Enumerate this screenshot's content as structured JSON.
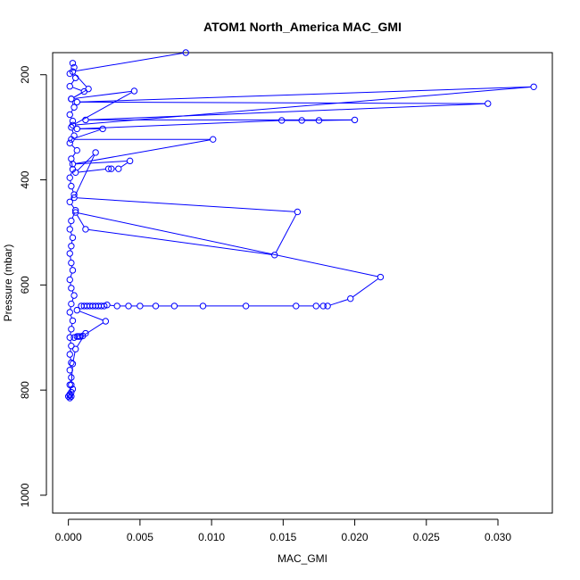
{
  "chart_data": {
    "type": "line",
    "title": "ATOM1 North_America MAC_GMI",
    "xlabel": "MAC_GMI",
    "ylabel": "Pressure (mbar)",
    "xlim": [
      -0.0011,
      0.0338
    ],
    "ylim": [
      1034,
      158
    ],
    "y_reversed": true,
    "x_ticks": [
      "0.000",
      "0.005",
      "0.010",
      "0.015",
      "0.020",
      "0.025",
      "0.030"
    ],
    "y_ticks": [
      "200",
      "400",
      "600",
      "800",
      "1000"
    ],
    "grid": false,
    "legend": "none",
    "series_color": "#0000ff",
    "series": [
      {
        "x": [
          0.0003,
          0.0004,
          0.0001,
          0.0005,
          0.0001,
          0.0011,
          0.0002,
          0.0004,
          0.0001,
          0.0003,
          0.0002,
          0.0004,
          0.0001,
          0.0006,
          0.0002,
          0.0003,
          0.0001,
          0.0002,
          0.0004,
          0.0001,
          0.0005,
          0.0002,
          0.0001,
          0.0003,
          0.0002,
          0.0001,
          0.0002,
          0.0003,
          0.0001,
          0.0002,
          0.0004,
          0.0002,
          0.0001,
          0.0003,
          0.0002,
          0.0001,
          0.0002,
          0.0001,
          0.0002,
          0.0001,
          0.0002,
          0.0001,
          0.0003,
          0.0002,
          0.0001,
          0.0002,
          0.0001,
          0.0
        ],
        "y": [
          178,
          186,
          198,
          206,
          222,
          232,
          246,
          262,
          276,
          288,
          300,
          316,
          330,
          344,
          360,
          380,
          396,
          412,
          428,
          442,
          458,
          478,
          494,
          510,
          526,
          540,
          558,
          572,
          590,
          606,
          620,
          636,
          652,
          668,
          684,
          700,
          716,
          732,
          748,
          762,
          776,
          790,
          798,
          804,
          808,
          812,
          815,
          812
        ]
      },
      {
        "x": [
          0.0082,
          0.0003,
          0.0014,
          0.0002,
          0.0046,
          0.0003,
          0.0325,
          0.0006,
          0.0293,
          0.0012,
          0.02,
          0.0175,
          0.0163,
          0.0149,
          0.0006,
          0.0024,
          0.0002,
          0.0101,
          0.0003,
          0.0043,
          0.0035,
          0.003,
          0.0028,
          0.0005,
          0.0019,
          0.0004,
          0.016,
          0.0144,
          0.0012,
          0.0005,
          0.0218,
          0.0197,
          0.0181,
          0.0178,
          0.0173,
          0.0159,
          0.0124,
          0.0094,
          0.0074,
          0.0061,
          0.005,
          0.0042,
          0.0034,
          0.0027,
          0.0025,
          0.0023,
          0.0021,
          0.0019,
          0.0017,
          0.0015,
          0.0013,
          0.0011,
          0.0009,
          0.0006,
          0.0026,
          0.001,
          0.0008,
          0.0007,
          0.0006,
          0.0004,
          0.0012,
          0.0005,
          0.0003,
          0.0002,
          0.0001
        ],
        "y": [
          158,
          194,
          227,
          246,
          231,
          296,
          223,
          252,
          255,
          286,
          286,
          287,
          287,
          287,
          303,
          303,
          323,
          323,
          370,
          364,
          379,
          379,
          379,
          386,
          348,
          434,
          461,
          543,
          494,
          462,
          585,
          626,
          640,
          640,
          640,
          640,
          640,
          640,
          640,
          640,
          640,
          640,
          640,
          638,
          640,
          640,
          640,
          640,
          640,
          640,
          640,
          640,
          640,
          648,
          669,
          697,
          698,
          698,
          698,
          700,
          692,
          722,
          750,
          790,
          810
        ]
      }
    ]
  }
}
